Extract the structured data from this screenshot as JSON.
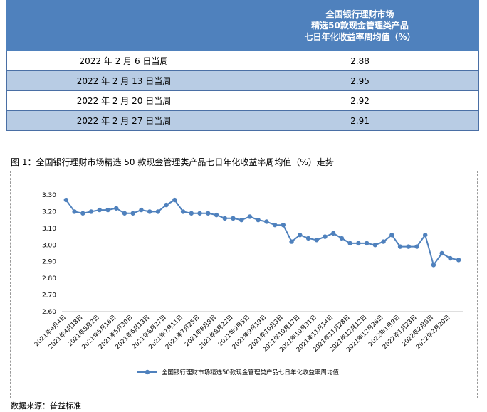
{
  "table": {
    "header_lines": [
      "全国银行理财市场",
      "精选50款现金管理类产品",
      "七日年化收益率周均值（%）"
    ],
    "rows": [
      {
        "period": "2022 年 2 月 6 日当周",
        "value": "2.88"
      },
      {
        "period": "2022 年 2 月 13 日当周",
        "value": "2.95"
      },
      {
        "period": "2022 年 2 月 20 日当周",
        "value": "2.92"
      },
      {
        "period": "2022 年 2 月 27 日当周",
        "value": "2.91"
      }
    ]
  },
  "caption": "图 1：全国银行理财市场精选 50 款现金管理类产品七日年化收益率周均值（%）走势",
  "source": "数据来源：普益标准",
  "chart_data": {
    "type": "line",
    "ylim": [
      2.6,
      3.3
    ],
    "yticks": [
      "3.30",
      "3.20",
      "3.10",
      "3.00",
      "2.90",
      "2.80",
      "2.70",
      "2.60"
    ],
    "xtick_labels": [
      "2021年4月4日",
      "2021年4月18日",
      "2021年5月2日",
      "2021年5月16日",
      "2021年5月30日",
      "2021年6月13日",
      "2021年6月27日",
      "2021年7月11日",
      "2021年7月25日",
      "2021年8月8日",
      "2021年8月22日",
      "2021年9月5日",
      "2021年9月19日",
      "2021年10月3日",
      "2021年10月17日",
      "2021年10月31日",
      "2021年11月14日",
      "2021年11月28日",
      "2021年12月12日",
      "2021年12月26日",
      "2022年1月9日",
      "2022年1月23日",
      "2022年2月6日",
      "2022年2月20日"
    ],
    "series": [
      {
        "name": "全国银行理财市场精选50款现金管理类产品七日年化收益率周均值",
        "color": "#4f81bd",
        "values": [
          3.27,
          3.2,
          3.19,
          3.2,
          3.21,
          3.21,
          3.22,
          3.19,
          3.19,
          3.21,
          3.2,
          3.2,
          3.24,
          3.27,
          3.2,
          3.19,
          3.19,
          3.19,
          3.18,
          3.16,
          3.16,
          3.15,
          3.17,
          3.15,
          3.14,
          3.12,
          3.12,
          3.02,
          3.06,
          3.04,
          3.03,
          3.05,
          3.07,
          3.04,
          3.01,
          3.01,
          3.01,
          3.0,
          3.02,
          3.06,
          2.99,
          2.99,
          2.99,
          3.06,
          2.88,
          2.95,
          2.92,
          2.91
        ]
      }
    ],
    "grid": false,
    "legend_position": "bottom"
  }
}
